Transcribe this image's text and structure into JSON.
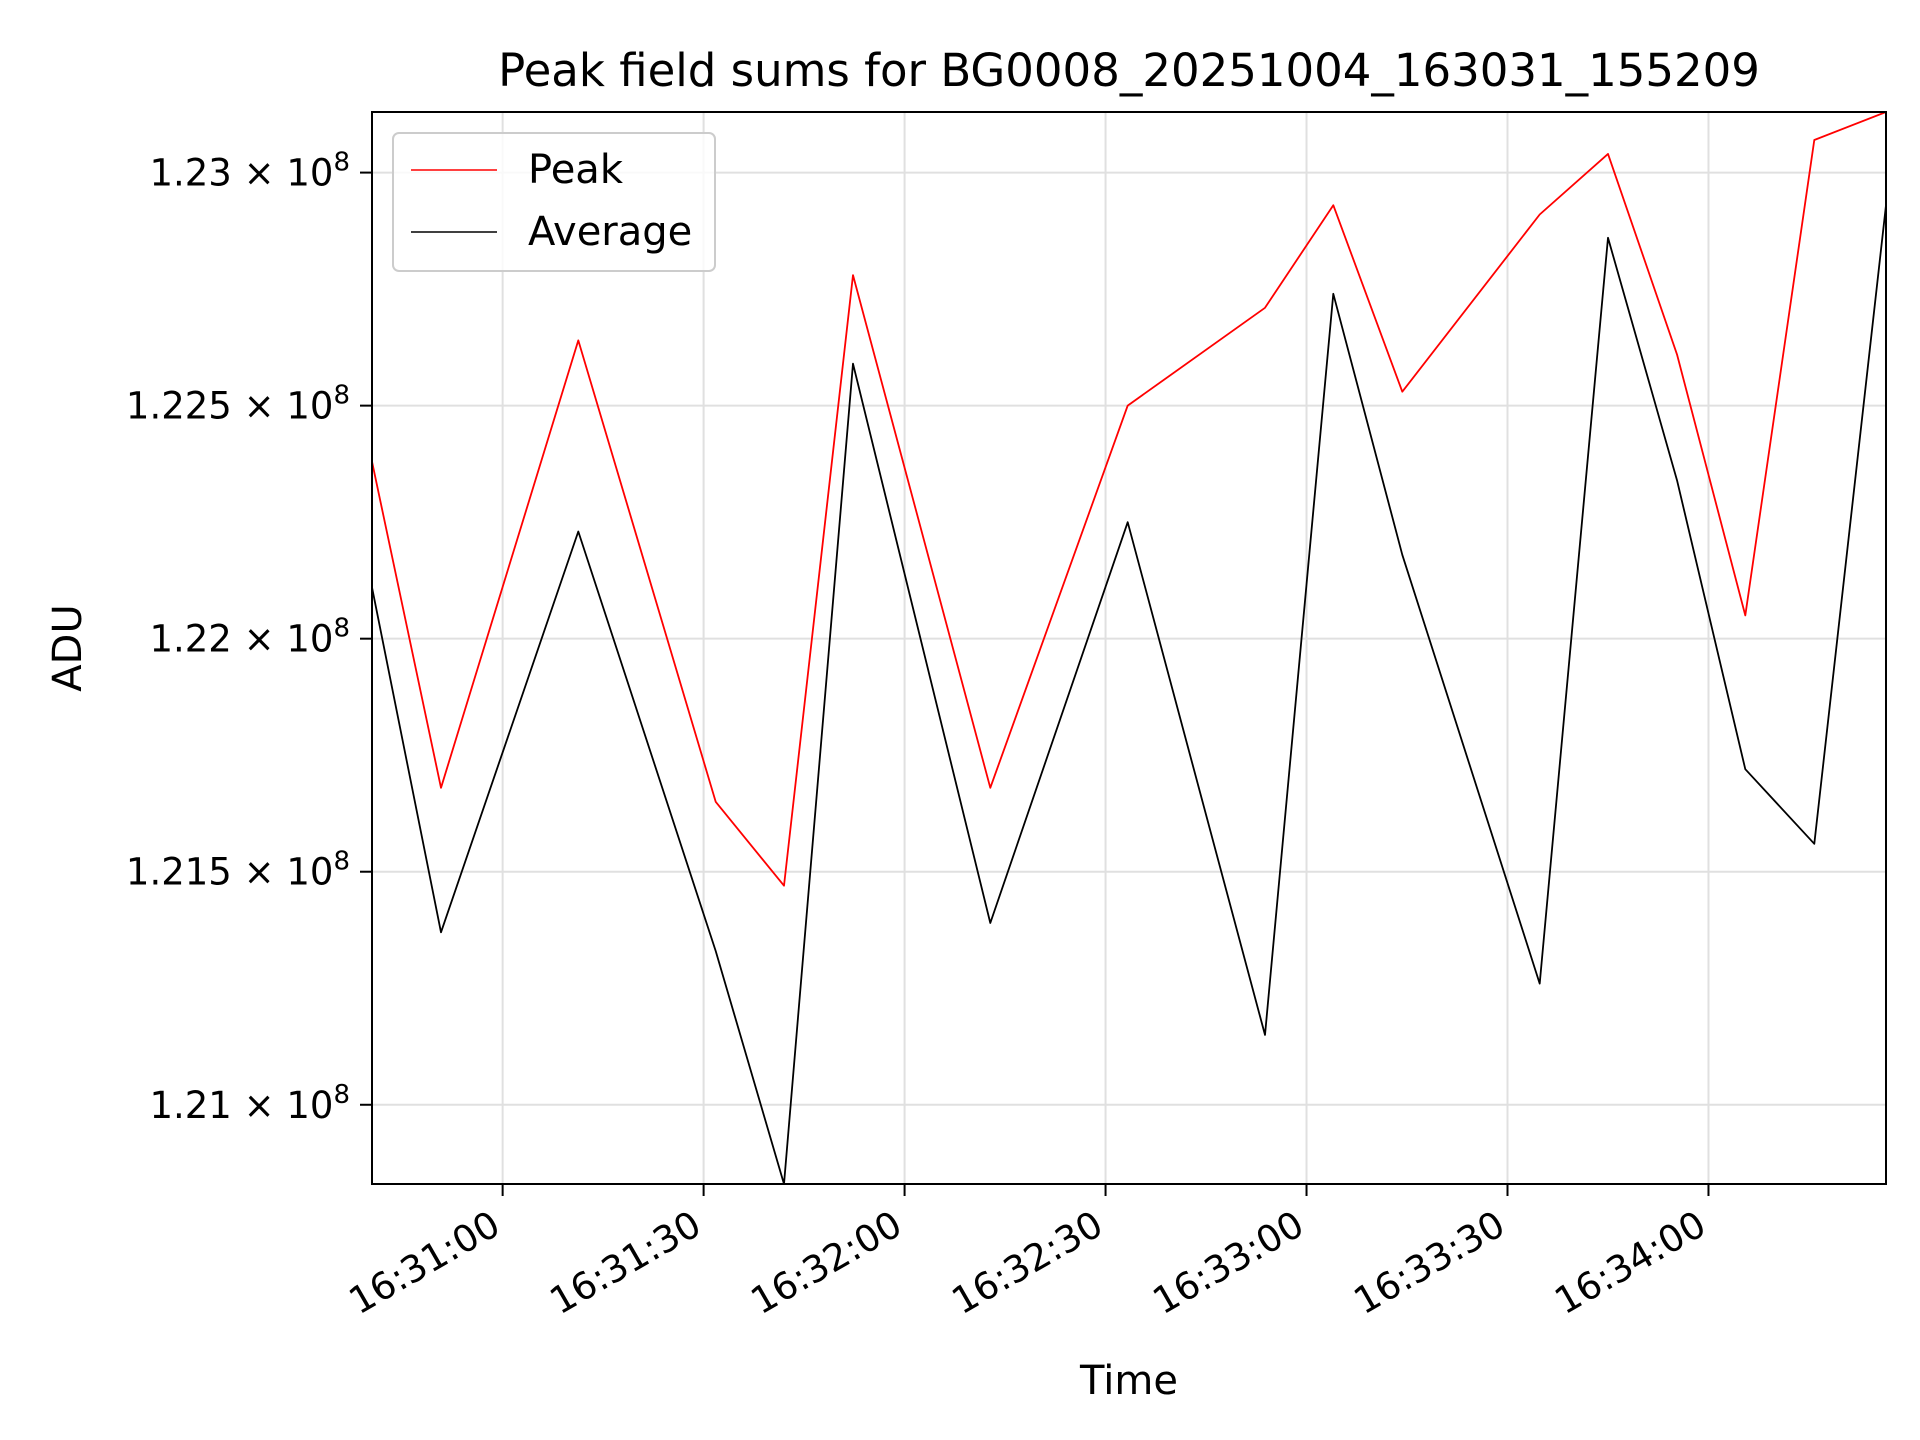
{
  "chart_data": {
    "type": "line",
    "title": "Peak field sums for BG0008_20251004_163031_155209",
    "xlabel": "Time",
    "ylabel": "ADU",
    "x_unit": "seconds since 16:30:00",
    "xlim": [
      40.5,
      266.5
    ],
    "ylim": [
      120830000,
      123130000
    ],
    "xticks": [
      {
        "value": 60,
        "label": "16:31:00"
      },
      {
        "value": 90,
        "label": "16:31:30"
      },
      {
        "value": 120,
        "label": "16:32:00"
      },
      {
        "value": 150,
        "label": "16:32:30"
      },
      {
        "value": 180,
        "label": "16:33:00"
      },
      {
        "value": 210,
        "label": "16:33:30"
      },
      {
        "value": 240,
        "label": "16:34:00"
      }
    ],
    "yticks": [
      {
        "value": 121000000,
        "mantissa": "1.21"
      },
      {
        "value": 121500000,
        "mantissa": "1.215"
      },
      {
        "value": 122000000,
        "mantissa": "1.22"
      },
      {
        "value": 122500000,
        "mantissa": "1.225"
      },
      {
        "value": 123000000,
        "mantissa": "1.23"
      }
    ],
    "ytick_suffix": "× 10",
    "ytick_exponent": "8",
    "grid": true,
    "legend_position": "top-left",
    "x": [
      40.5,
      50.8,
      71.3,
      91.8,
      102.0,
      112.3,
      132.8,
      153.3,
      173.8,
      184.0,
      194.3,
      214.8,
      225.0,
      235.3,
      245.5,
      255.8,
      266.5
    ],
    "series": [
      {
        "name": "Peak",
        "color": "#ff0000",
        "values": [
          122380000,
          121680000,
          122640000,
          121650000,
          121470000,
          122780000,
          121680000,
          122500000,
          122710000,
          122930000,
          122530000,
          122910000,
          123040000,
          122610000,
          122050000,
          123070000,
          123130000
        ]
      },
      {
        "name": "Average",
        "color": "#000000",
        "values": [
          122110000,
          121370000,
          122230000,
          121330000,
          120830000,
          122590000,
          121390000,
          122250000,
          121150000,
          122740000,
          122180000,
          121260000,
          122860000,
          122340000,
          121720000,
          121560000,
          122930000
        ]
      }
    ]
  }
}
